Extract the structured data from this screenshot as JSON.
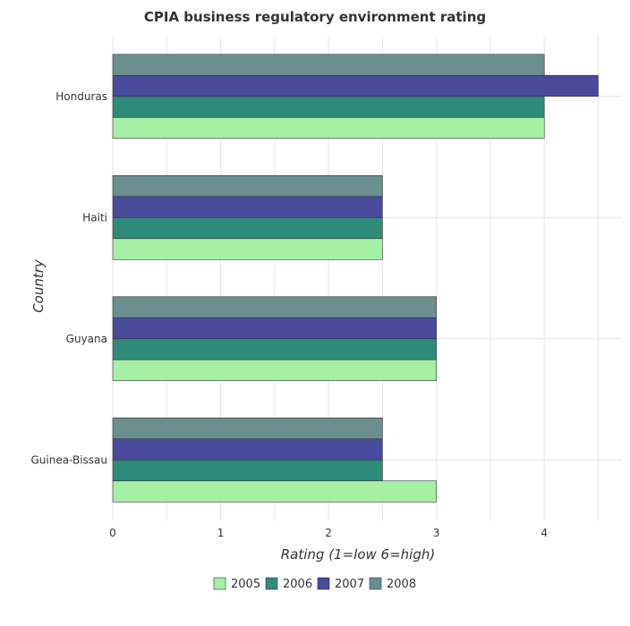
{
  "chart_data": {
    "type": "bar",
    "orientation": "horizontal",
    "title": "CPIA business regulatory environment rating",
    "xlabel": "Rating (1=low 6=high)",
    "ylabel": "Country",
    "categories": [
      "Guinea-Bissau",
      "Guyana",
      "Haiti",
      "Honduras"
    ],
    "series": [
      {
        "name": "2005",
        "color": "#a6f0a6",
        "values": [
          3.0,
          3.0,
          2.5,
          4.0
        ]
      },
      {
        "name": "2006",
        "color": "#2e8b7a",
        "values": [
          2.5,
          3.0,
          2.5,
          4.0
        ]
      },
      {
        "name": "2007",
        "color": "#4a4a9c",
        "values": [
          2.5,
          3.0,
          2.5,
          4.5
        ]
      },
      {
        "name": "2008",
        "color": "#6b8e8e",
        "values": [
          2.5,
          3.0,
          2.5,
          4.0
        ]
      }
    ],
    "xlim": [
      0,
      4.72
    ],
    "xticks": [
      "0",
      "1",
      "2",
      "3",
      "4"
    ],
    "grid": true,
    "legend_position": "bottom"
  }
}
